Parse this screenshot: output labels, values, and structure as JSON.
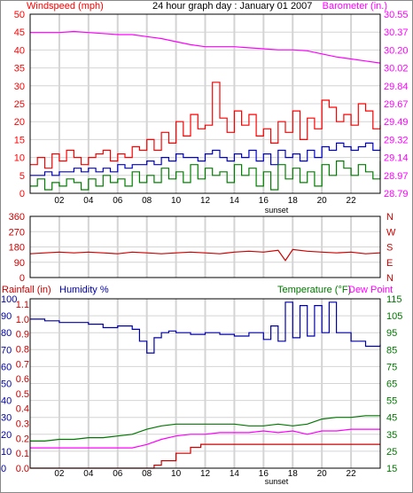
{
  "colors": {
    "wind": "#ff0000",
    "wind_avg": "#0000cc",
    "wind_low": "#008000",
    "barometer": "#ff00ff",
    "direction": "#cc0000",
    "humidity": "#0000aa",
    "rainfall": "#cc0000",
    "temperature": "#007700",
    "dewpoint": "#ff00ff",
    "grid": "#d4d4d4",
    "axis": "#000000"
  },
  "chart_data": [
    {
      "type": "line",
      "title": "24 hour graph day : January 01 2007",
      "left_axis_label": "Windspeed (mph)",
      "right_axis_label": "Barometer (in.)",
      "x_tick_labels": [
        "02",
        "04",
        "06",
        "08",
        "10",
        "12",
        "14",
        "16",
        "18",
        "20",
        "22"
      ],
      "x_marker": "sunset",
      "grid": true,
      "y_left_ticks": [
        "0",
        "5",
        "10",
        "15",
        "20",
        "25",
        "30",
        "35",
        "40",
        "45",
        "50"
      ],
      "y_right_ticks": [
        "28.79",
        "28.97",
        "29.14",
        "29.32",
        "29.49",
        "29.67",
        "29.84",
        "30.02",
        "30.20",
        "30.37",
        "30.55"
      ],
      "ylim_left": [
        0,
        50
      ],
      "ylim_right": [
        28.79,
        30.55
      ],
      "series": [
        {
          "axis": "right",
          "color_key": "barometer",
          "x": [
            0,
            1,
            2,
            3,
            4,
            5,
            6,
            7,
            8,
            9,
            10,
            11,
            12,
            13,
            14,
            15,
            16,
            17,
            18,
            19,
            20,
            21,
            22,
            23,
            24
          ],
          "y": [
            30.37,
            30.37,
            30.37,
            30.38,
            30.37,
            30.36,
            30.35,
            30.35,
            30.33,
            30.31,
            30.28,
            30.25,
            30.23,
            30.23,
            30.23,
            30.22,
            30.21,
            30.2,
            30.2,
            30.19,
            30.16,
            30.13,
            30.11,
            30.09,
            30.07
          ]
        },
        {
          "axis": "left",
          "color_key": "wind",
          "x": [
            0,
            0.5,
            1,
            1.5,
            2,
            2.5,
            3,
            3.5,
            4,
            4.5,
            5,
            5.5,
            6,
            6.5,
            7,
            7.5,
            8,
            8.5,
            9,
            9.5,
            10,
            10.5,
            11,
            11.5,
            12,
            12.5,
            13,
            13.5,
            14,
            14.5,
            15,
            15.5,
            16,
            16.5,
            17,
            17.5,
            18,
            18.5,
            19,
            19.5,
            20,
            20.5,
            21,
            21.5,
            22,
            22.5,
            23,
            23.5,
            24
          ],
          "y": [
            8,
            10,
            7,
            11,
            9,
            12,
            10,
            8,
            10,
            11,
            12,
            9,
            11,
            10,
            13,
            12,
            15,
            12,
            17,
            14,
            20,
            16,
            22,
            18,
            19,
            31,
            21,
            17,
            23,
            19,
            22,
            16,
            18,
            14,
            20,
            17,
            23,
            15,
            21,
            18,
            26,
            24,
            20,
            22,
            19,
            25,
            23,
            18,
            19
          ]
        },
        {
          "axis": "left",
          "color_key": "wind_avg",
          "x": [
            0,
            0.5,
            1,
            1.5,
            2,
            2.5,
            3,
            3.5,
            4,
            4.5,
            5,
            5.5,
            6,
            6.5,
            7,
            7.5,
            8,
            8.5,
            9,
            9.5,
            10,
            10.5,
            11,
            11.5,
            12,
            12.5,
            13,
            13.5,
            14,
            14.5,
            15,
            15.5,
            16,
            16.5,
            17,
            17.5,
            18,
            18.5,
            19,
            19.5,
            20,
            20.5,
            21,
            21.5,
            22,
            22.5,
            23,
            23.5,
            24
          ],
          "y": [
            5,
            5,
            6,
            5,
            6,
            6,
            7,
            6,
            7,
            6,
            7,
            6,
            8,
            7,
            8,
            8,
            9,
            8,
            10,
            9,
            11,
            10,
            10,
            9,
            11,
            12,
            10,
            9,
            11,
            10,
            12,
            9,
            11,
            8,
            12,
            10,
            11,
            9,
            12,
            10,
            13,
            12,
            14,
            13,
            12,
            13,
            14,
            12,
            13
          ]
        },
        {
          "axis": "left",
          "color_key": "wind_low",
          "x": [
            0,
            0.5,
            1,
            1.5,
            2,
            2.5,
            3,
            3.5,
            4,
            4.5,
            5,
            5.5,
            6,
            6.5,
            7,
            7.5,
            8,
            8.5,
            9,
            9.5,
            10,
            10.5,
            11,
            11.5,
            12,
            12.5,
            13,
            13.5,
            14,
            14.5,
            15,
            15.5,
            16,
            16.5,
            17,
            17.5,
            18,
            18.5,
            19,
            19.5,
            20,
            20.5,
            21,
            21.5,
            22,
            22.5,
            23,
            23.5,
            24
          ],
          "y": [
            2,
            4,
            1,
            3,
            2,
            4,
            3,
            1,
            4,
            2,
            5,
            3,
            4,
            2,
            6,
            3,
            5,
            3,
            7,
            4,
            6,
            3,
            8,
            4,
            7,
            5,
            6,
            3,
            8,
            5,
            7,
            2,
            6,
            1,
            8,
            4,
            7,
            3,
            6,
            2,
            8,
            5,
            9,
            7,
            5,
            8,
            6,
            4,
            9
          ]
        }
      ]
    },
    {
      "type": "scatter",
      "y_left_ticks": [
        "360",
        "270",
        "180",
        "90",
        "0"
      ],
      "y_right_ticks": [
        "N",
        "W",
        "S",
        "E",
        "N"
      ],
      "ylim": [
        0,
        360
      ],
      "grid": true,
      "series": [
        {
          "color_key": "direction",
          "x": [
            0,
            1,
            2,
            3,
            4,
            5,
            6,
            7,
            8,
            9,
            10,
            11,
            12,
            13,
            14,
            15,
            16,
            17,
            17.5,
            18,
            19,
            20,
            21,
            22,
            23,
            24
          ],
          "y": [
            140,
            145,
            150,
            145,
            150,
            145,
            140,
            150,
            145,
            140,
            145,
            150,
            145,
            140,
            150,
            155,
            150,
            160,
            100,
            165,
            155,
            150,
            145,
            150,
            140,
            145
          ]
        }
      ]
    },
    {
      "type": "line",
      "labels": [
        "Rainfall (in)",
        "Humidity %",
        "Temperature (°F)",
        "Dew Point"
      ],
      "x_tick_labels": [
        "02",
        "04",
        "06",
        "08",
        "10",
        "12",
        "14",
        "16",
        "18",
        "20",
        "22"
      ],
      "x_marker": "sunset",
      "grid": true,
      "y_humidity_ticks": [
        "100",
        "90",
        "80",
        "70",
        "60",
        "50",
        "40",
        "30",
        "20",
        "10",
        "0"
      ],
      "y_rain_ticks": [
        "1.1",
        "1.0",
        "0.9",
        "0.8",
        "0.7",
        "0.6",
        "0.5",
        "0.4",
        "0.3",
        "0.2",
        "0.1",
        "0.0"
      ],
      "y_right_ticks": [
        "115",
        "105",
        "95",
        "85",
        "75",
        "65",
        "55",
        "45",
        "35",
        "25",
        "15"
      ],
      "ylim_humidity": [
        0,
        100
      ],
      "ylim_temperature": [
        15,
        115
      ],
      "series": [
        {
          "name": "Humidity %",
          "axis": "humidity",
          "color_key": "humidity",
          "x": [
            0,
            1,
            2,
            3,
            4,
            5,
            6,
            7,
            7.5,
            8,
            8.5,
            9,
            9.5,
            10,
            11,
            12,
            13,
            14,
            15,
            16,
            16.5,
            17,
            17.5,
            18,
            18.5,
            19,
            19.5,
            20,
            20.5,
            21,
            22,
            23,
            24
          ],
          "y": [
            88,
            87,
            86,
            86,
            85,
            83,
            84,
            82,
            75,
            68,
            77,
            80,
            81,
            80,
            79,
            80,
            79,
            78,
            80,
            76,
            84,
            75,
            98,
            77,
            96,
            78,
            96,
            80,
            98,
            80,
            75,
            72,
            73
          ]
        },
        {
          "name": "Temperature (°F)",
          "axis": "temperature",
          "color_key": "temperature",
          "x": [
            0,
            1,
            2,
            3,
            4,
            5,
            6,
            7,
            8,
            9,
            10,
            11,
            12,
            13,
            14,
            15,
            16,
            17,
            18,
            19,
            20,
            21,
            22,
            23,
            24
          ],
          "y": [
            31,
            31,
            32,
            32,
            33,
            33,
            34,
            35,
            38,
            40,
            41,
            41,
            41,
            41,
            41,
            40,
            40,
            41,
            40,
            41,
            44,
            45,
            45,
            46,
            46
          ]
        },
        {
          "name": "Dew Point",
          "axis": "temperature",
          "color_key": "dewpoint",
          "x": [
            0,
            1,
            2,
            3,
            4,
            5,
            6,
            7,
            8,
            9,
            10,
            11,
            12,
            13,
            14,
            15,
            16,
            17,
            18,
            19,
            20,
            21,
            22,
            23,
            24
          ],
          "y": [
            27,
            27,
            27,
            27,
            27,
            27,
            27,
            27,
            29,
            32,
            34,
            35,
            35,
            36,
            36,
            36,
            37,
            36,
            37,
            35,
            37,
            37,
            38,
            38,
            38
          ]
        },
        {
          "name": "Rainfall (in)",
          "axis": "rain",
          "color_key": "rainfall",
          "x": [
            0,
            7.5,
            8.5,
            9,
            10,
            11,
            11.7,
            12,
            13,
            16,
            20,
            24
          ],
          "y": [
            0.0,
            0.0,
            0.02,
            0.05,
            0.1,
            0.14,
            0.16,
            0.16,
            0.16,
            0.16,
            0.16,
            0.16
          ]
        }
      ]
    }
  ]
}
